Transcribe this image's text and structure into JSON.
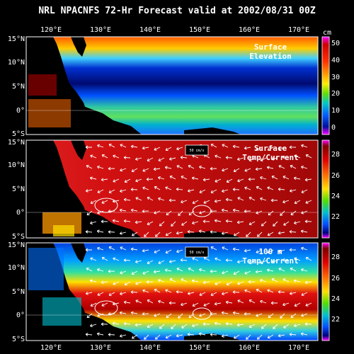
{
  "title": "NRL NPACNFS 72-Hr Forecast valid at 2002/08/31 00Z",
  "longitudes": [
    "120°E",
    "130°E",
    "140°E",
    "150°E",
    "160°E",
    "170°E"
  ],
  "latitudes": [
    "15°N",
    "10°N",
    "5°N",
    "0°",
    "5°S"
  ],
  "vector_scale_label": "50 cm/s",
  "panels": [
    {
      "label_line1": "Surface",
      "label_line2": "Elevation",
      "unit": "cm",
      "colorbar_ticks": [
        "50",
        "40",
        "30",
        "20",
        "10",
        "0"
      ],
      "has_vectors": false
    },
    {
      "label_line1": "Surface",
      "label_line2": "Temp/Current",
      "unit": "",
      "colorbar_ticks": [
        "28",
        "26",
        "24",
        "22"
      ],
      "has_vectors": true
    },
    {
      "label_line1": "100 m",
      "label_line2": "Temp/Current",
      "unit": "",
      "colorbar_ticks": [
        "28",
        "26",
        "24",
        "22"
      ],
      "has_vectors": true
    }
  ],
  "colors": {
    "background": "#000000",
    "land": "#000000",
    "ocean_warm": "#cc1010",
    "ocean_cool": "#0a1a8a"
  }
}
